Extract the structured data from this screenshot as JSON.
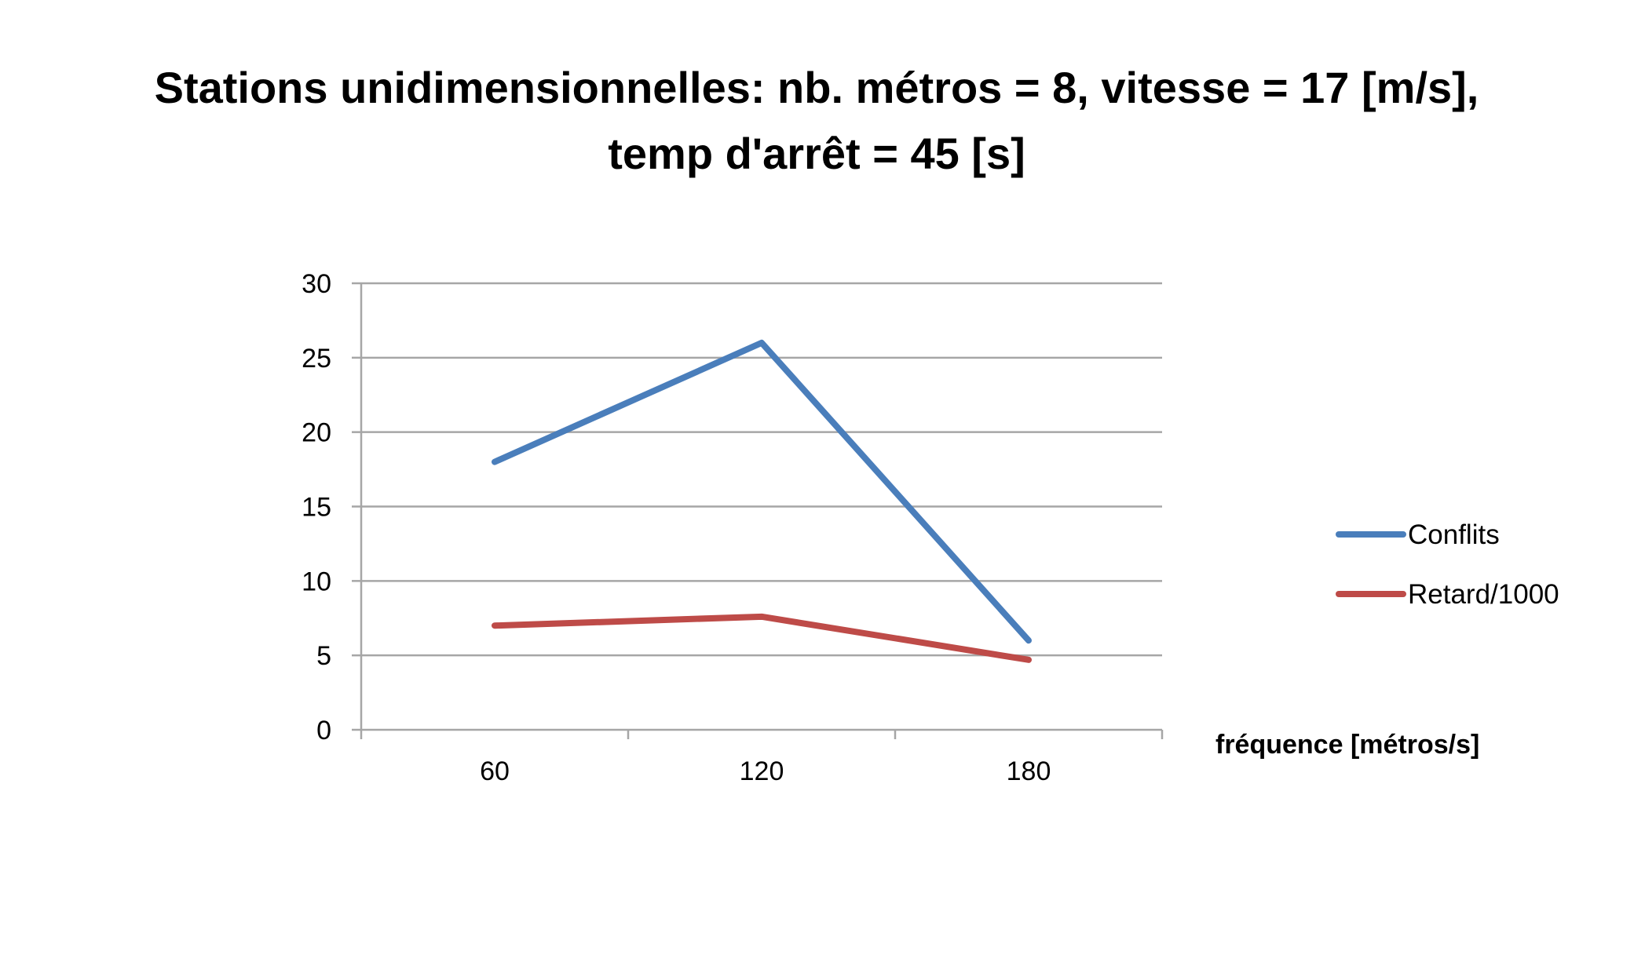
{
  "chart_data": {
    "type": "line",
    "title": "Stations unidimensionnelles: nb. métros = 8, vitesse = 17 [m/s], temp d'arrêt = 45 [s]",
    "xlabel": "fréquence [métros/s]",
    "ylabel": "",
    "categories": [
      "60",
      "120",
      "180"
    ],
    "ylim": [
      0,
      30
    ],
    "yticks": [
      0,
      5,
      10,
      15,
      20,
      25,
      30
    ],
    "grid": true,
    "legend_position": "right",
    "series": [
      {
        "name": "Conflits",
        "values": [
          18,
          26,
          6
        ],
        "color": "#4a7ebb"
      },
      {
        "name": "Retard/1000",
        "values": [
          7.0,
          7.6,
          4.7
        ],
        "color": "#be4b48"
      }
    ]
  }
}
